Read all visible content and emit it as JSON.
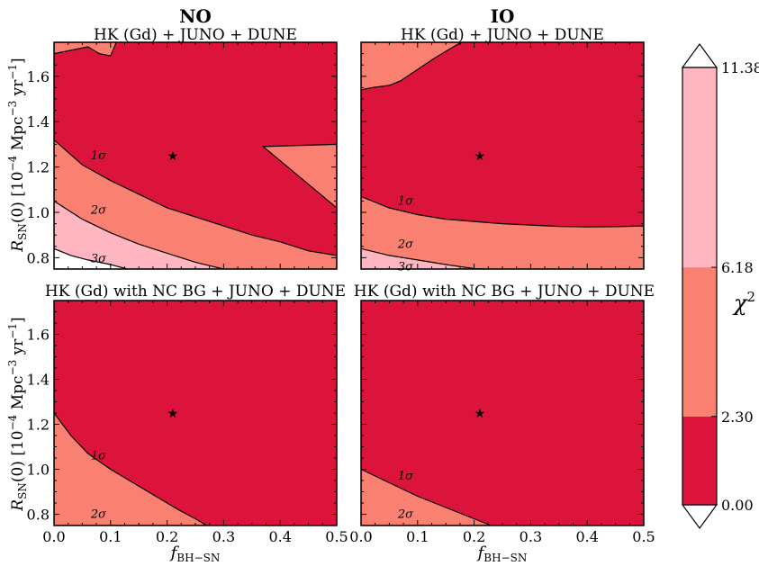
{
  "colors": {
    "band_1sigma": "#dc143c",
    "band_2sigma": "#fa8072",
    "band_3sigma": "#ffb6c1",
    "contour_line": "#000000",
    "marker": "#000000"
  },
  "column_titles": [
    "NO",
    "IO"
  ],
  "chart_data": [
    {
      "type": "contour",
      "panel": "top-left",
      "subtitle": "HK (Gd) + JUNO + DUNE",
      "xlabel": "",
      "ylabel": "R_SN(0) [10^-4 Mpc^-3 yr^-1]",
      "xlim": [
        0.0,
        0.5
      ],
      "ylim": [
        0.75,
        1.75
      ],
      "xticks": [],
      "yticks": [
        "0.8",
        "1.0",
        "1.2",
        "1.4",
        "1.6"
      ],
      "best_fit": {
        "x": 0.21,
        "y": 1.25
      },
      "contour_labels": [
        {
          "text": "1σ",
          "x": 0.065,
          "y": 1.25
        },
        {
          "text": "2σ",
          "x": 0.065,
          "y": 1.01
        },
        {
          "text": "3σ",
          "x": 0.065,
          "y": 0.795
        }
      ],
      "regions": [
        {
          "level": "2sigma",
          "points": [
            [
              0.0,
              1.32
            ],
            [
              0.05,
              1.21
            ],
            [
              0.1,
              1.14
            ],
            [
              0.15,
              1.08
            ],
            [
              0.2,
              1.02
            ],
            [
              0.25,
              0.98
            ],
            [
              0.3,
              0.94
            ],
            [
              0.35,
              0.9
            ],
            [
              0.4,
              0.87
            ],
            [
              0.45,
              0.83
            ],
            [
              0.5,
              0.81
            ],
            [
              0.5,
              0.75
            ],
            [
              0.0,
              0.75
            ]
          ]
        },
        {
          "level": "3sigma",
          "points": [
            [
              0.0,
              1.05
            ],
            [
              0.05,
              0.97
            ],
            [
              0.1,
              0.91
            ],
            [
              0.15,
              0.86
            ],
            [
              0.2,
              0.82
            ],
            [
              0.25,
              0.78
            ],
            [
              0.3,
              0.75
            ],
            [
              0.0,
              0.75
            ]
          ]
        },
        {
          "level": "white",
          "points": [
            [
              0.0,
              0.84
            ],
            [
              0.03,
              0.81
            ],
            [
              0.06,
              0.79
            ],
            [
              0.1,
              0.77
            ],
            [
              0.13,
              0.75
            ],
            [
              0.0,
              0.75
            ]
          ]
        },
        {
          "level": "2sigma",
          "points": [
            [
              0.0,
              1.75
            ],
            [
              0.5,
              1.75
            ],
            [
              0.48,
              1.75
            ],
            [
              0.3,
              1.75
            ],
            [
              0.2,
              1.75
            ],
            [
              0.11,
              1.75
            ],
            [
              0.1,
              1.69
            ],
            [
              0.08,
              1.7
            ],
            [
              0.06,
              1.73
            ],
            [
              0.02,
              1.71
            ],
            [
              0.0,
              1.7
            ]
          ]
        },
        {
          "level": "2sigma",
          "points": [
            [
              0.37,
              1.29
            ],
            [
              0.5,
              1.3
            ],
            [
              0.5,
              1.02
            ]
          ]
        }
      ]
    },
    {
      "type": "contour",
      "panel": "top-right",
      "subtitle": "HK (Gd) + JUNO + DUNE",
      "xlabel": "",
      "ylabel": "",
      "xlim": [
        0.0,
        0.5
      ],
      "ylim": [
        0.75,
        1.75
      ],
      "xticks": [],
      "yticks": [],
      "best_fit": {
        "x": 0.21,
        "y": 1.25
      },
      "contour_labels": [
        {
          "text": "1σ",
          "x": 0.065,
          "y": 1.05
        },
        {
          "text": "2σ",
          "x": 0.065,
          "y": 0.86
        },
        {
          "text": "3σ",
          "x": 0.065,
          "y": 0.76
        }
      ],
      "regions": [
        {
          "level": "2sigma",
          "points": [
            [
              0.0,
              1.07
            ],
            [
              0.05,
              1.02
            ],
            [
              0.1,
              0.99
            ],
            [
              0.15,
              0.97
            ],
            [
              0.2,
              0.96
            ],
            [
              0.25,
              0.95
            ],
            [
              0.3,
              0.944
            ],
            [
              0.35,
              0.938
            ],
            [
              0.4,
              0.936
            ],
            [
              0.45,
              0.937
            ],
            [
              0.5,
              0.94
            ],
            [
              0.5,
              0.75
            ],
            [
              0.0,
              0.75
            ]
          ]
        },
        {
          "level": "3sigma",
          "points": [
            [
              0.0,
              0.84
            ],
            [
              0.05,
              0.81
            ],
            [
              0.1,
              0.79
            ],
            [
              0.15,
              0.77
            ],
            [
              0.2,
              0.752
            ],
            [
              0.22,
              0.75
            ],
            [
              0.0,
              0.75
            ]
          ]
        },
        {
          "level": "2sigma",
          "points": [
            [
              0.0,
              1.54
            ],
            [
              0.02,
              1.55
            ],
            [
              0.05,
              1.56
            ],
            [
              0.07,
              1.58
            ],
            [
              0.1,
              1.63
            ],
            [
              0.13,
              1.68
            ],
            [
              0.17,
              1.74
            ],
            [
              0.18,
              1.75
            ],
            [
              0.0,
              1.75
            ]
          ]
        }
      ]
    },
    {
      "type": "contour",
      "panel": "bottom-left",
      "subtitle": "HK (Gd) with NC BG + JUNO + DUNE",
      "xlabel": "f_BH−SN",
      "ylabel": "R_SN(0) [10^-4 Mpc^-3 yr^-1]",
      "xlim": [
        0.0,
        0.5
      ],
      "ylim": [
        0.75,
        1.75
      ],
      "xticks": [
        "0.0",
        "0.1",
        "0.2",
        "0.3",
        "0.4",
        "0.5"
      ],
      "yticks": [
        "0.8",
        "1.0",
        "1.2",
        "1.4",
        "1.6"
      ],
      "best_fit": {
        "x": 0.21,
        "y": 1.25
      },
      "contour_labels": [
        {
          "text": "1σ",
          "x": 0.065,
          "y": 1.06
        },
        {
          "text": "2σ",
          "x": 0.065,
          "y": 0.8
        }
      ],
      "regions": [
        {
          "level": "2sigma",
          "points": [
            [
              0.0,
              1.25
            ],
            [
              0.03,
              1.15
            ],
            [
              0.06,
              1.07
            ],
            [
              0.1,
              1.0
            ],
            [
              0.14,
              0.94
            ],
            [
              0.18,
              0.88
            ],
            [
              0.22,
              0.82
            ],
            [
              0.25,
              0.78
            ],
            [
              0.27,
              0.75
            ],
            [
              0.0,
              0.75
            ]
          ]
        }
      ]
    },
    {
      "type": "contour",
      "panel": "bottom-right",
      "subtitle": "HK (Gd) with NC BG + JUNO + DUNE",
      "xlabel": "f_BH−SN",
      "ylabel": "",
      "xlim": [
        0.0,
        0.5
      ],
      "ylim": [
        0.75,
        1.75
      ],
      "xticks": [
        "0.0",
        "0.1",
        "0.2",
        "0.3",
        "0.4",
        "0.5"
      ],
      "yticks": [],
      "best_fit": {
        "x": 0.21,
        "y": 1.25
      },
      "contour_labels": [
        {
          "text": "1σ",
          "x": 0.065,
          "y": 0.97
        },
        {
          "text": "2σ",
          "x": 0.065,
          "y": 0.8
        }
      ],
      "regions": [
        {
          "level": "2sigma",
          "points": [
            [
              0.0,
              1.0
            ],
            [
              0.05,
              0.94
            ],
            [
              0.1,
              0.88
            ],
            [
              0.15,
              0.83
            ],
            [
              0.2,
              0.78
            ],
            [
              0.23,
              0.75
            ],
            [
              0.0,
              0.75
            ]
          ]
        }
      ]
    }
  ],
  "colorbar": {
    "label": "χ²",
    "ticks": [
      "0.00",
      "2.30",
      "6.18",
      "11.38"
    ],
    "bands": [
      "1sigma",
      "2sigma",
      "3sigma"
    ]
  }
}
